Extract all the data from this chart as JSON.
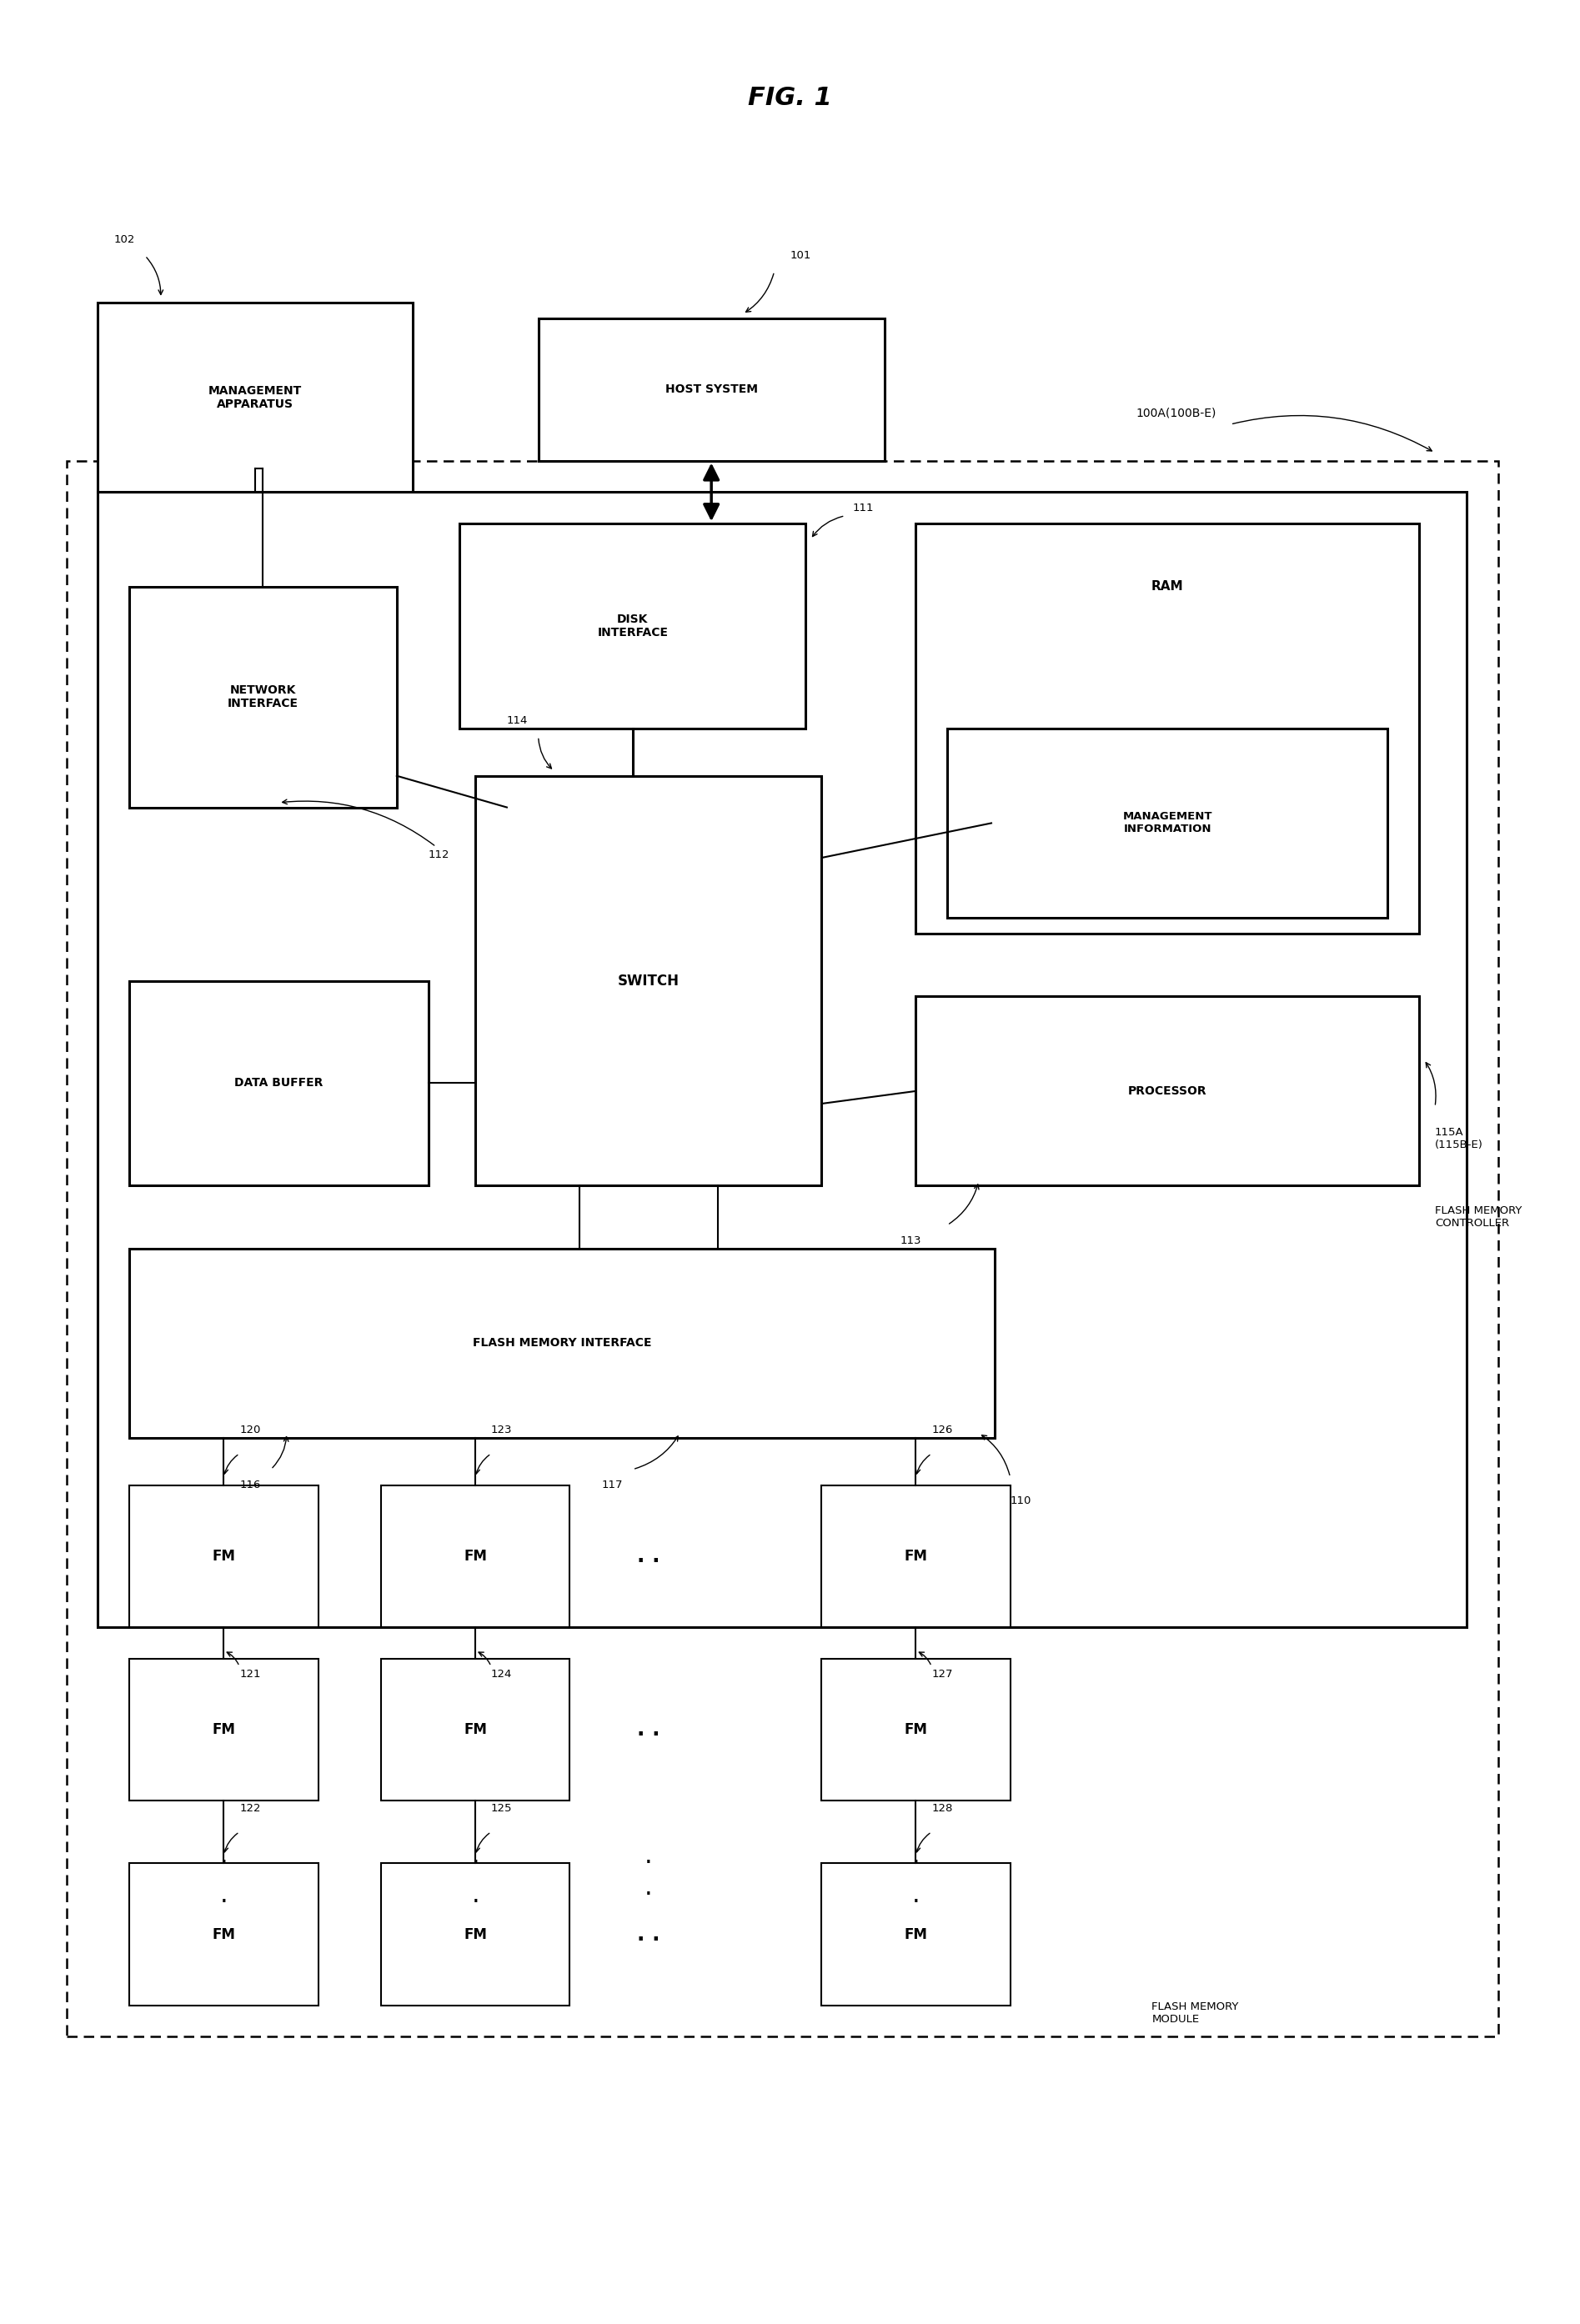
{
  "title": "FIG. 1",
  "bg_color": "#ffffff",
  "fig_width": 18.95,
  "fig_height": 27.88,
  "labels": {
    "management_apparatus": "MANAGEMENT\nAPPARATUS",
    "host_system": "HOST SYSTEM",
    "network_interface": "NETWORK\nINTERFACE",
    "disk_interface": "DISK\nINTERFACE",
    "ram": "RAM",
    "management_information": "MANAGEMENT\nINFORMATION",
    "processor": "PROCESSOR",
    "switch": "SWITCH",
    "data_buffer": "DATA BUFFER",
    "flash_memory_interface": "FLASH MEMORY INTERFACE",
    "fm": "FM",
    "flash_memory_controller": "FLASH MEMORY\nCONTROLLER",
    "flash_memory_module": "FLASH MEMORY\nMODULE",
    "label_100A": "100A(100B-E)",
    "label_101": "101",
    "label_102": "102",
    "label_110": "110",
    "label_111": "111",
    "label_112": "112",
    "label_113": "113",
    "label_114": "114",
    "label_115A": "115A\n(115B-E)",
    "label_116": "116",
    "label_117": "117",
    "label_120": "120",
    "label_121": "121",
    "label_122": "122",
    "label_123": "123",
    "label_124": "124",
    "label_125": "125",
    "label_126": "126",
    "label_127": "127",
    "label_128": "128"
  }
}
